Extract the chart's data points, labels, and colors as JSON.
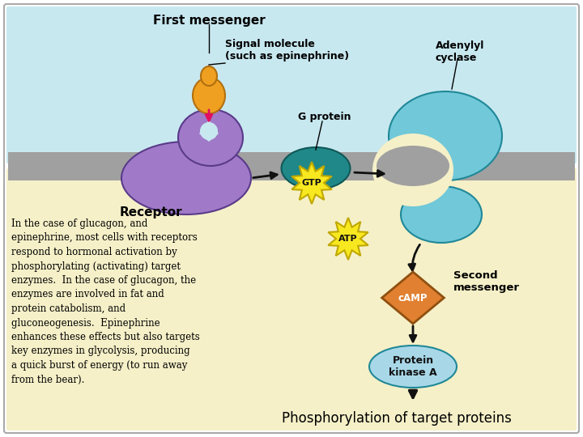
{
  "bg_color": "#ffffff",
  "border_color": "#aaaaaa",
  "cell_membrane_color": "#a0a0a0",
  "extracellular_bg": "#c8e8f0",
  "intracellular_bg": "#f5f0c8",
  "receptor_color": "#a07ac8",
  "receptor_edge": "#5a3a8a",
  "signal_molecule_color": "#f0a020",
  "signal_molecule_edge": "#b07010",
  "g_protein_color": "#208888",
  "g_protein_edge": "#105858",
  "adenylyl_cyclase_color": "#70c8d8",
  "adenylyl_cyclase_edge": "#208898",
  "gtp_fill": "#f8e820",
  "gtp_edge": "#c0a800",
  "atp_fill": "#f8e820",
  "atp_edge": "#c0a800",
  "camp_fill": "#e08030",
  "camp_edge": "#905010",
  "protein_kinase_color": "#a8d8e8",
  "protein_kinase_edge": "#208898",
  "arrow_color": "#111111",
  "pink_arrow_color": "#e01060",
  "text_color": "#000000",
  "title_text": "First messenger",
  "signal_label": "Signal molecule\n(such as epinephrine)",
  "g_protein_label": "G protein",
  "adenylyl_label": "Adenylyl\ncyclase",
  "receptor_label": "Receptor",
  "gtp_label": "GTP",
  "atp_label": "ATP",
  "camp_label": "cAMP",
  "second_messenger_label": "Second\nmessenger",
  "protein_kinase_label": "Protein\nkinase A",
  "bottom_label": "Phosphorylation of target proteins",
  "body_text": "In the case of glucagon, and\nepinephrine, most cells with receptors\nrespond to hormonal activation by\nphosphorylating (activating) target\nenzymes.  In the case of glucagon, the\nenzymes are involved in fat and\nprotein catabolism, and\ngluconeogenesis.  Epinephrine\nenhances these effects but also targets\nkey enzymes in glycolysis, producing\na quick burst of energy (to run away\nfrom the bear)."
}
